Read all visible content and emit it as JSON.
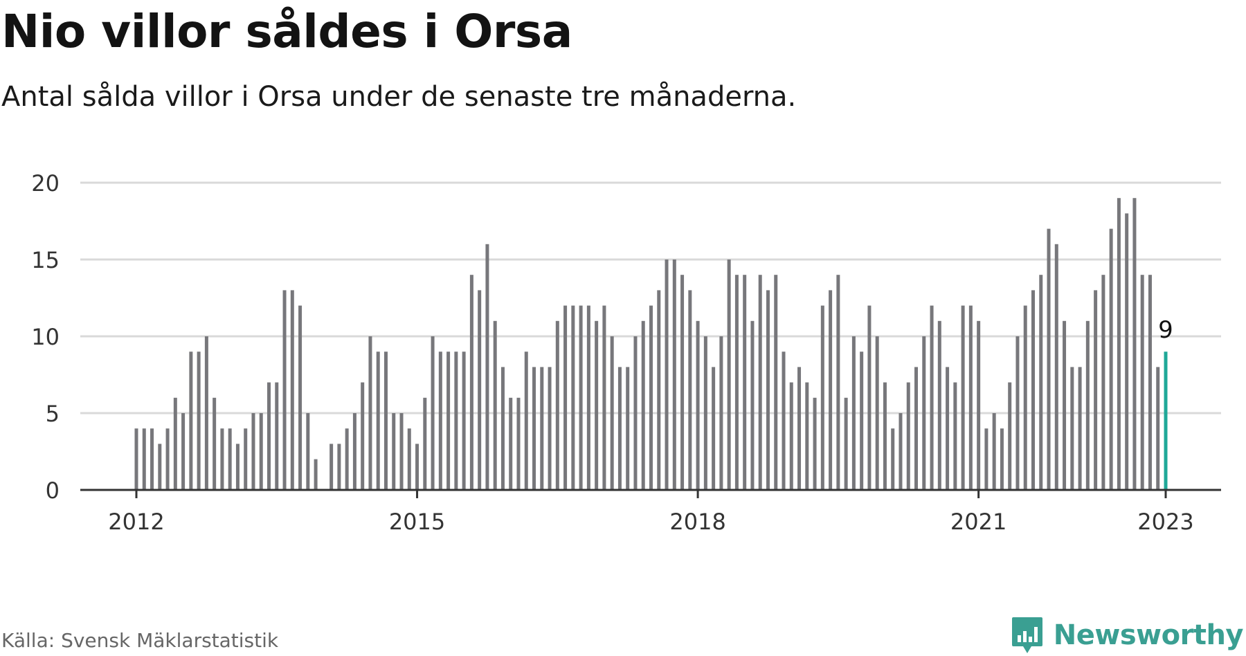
{
  "title": "Nio villor såldes i Orsa",
  "subtitle": "Antal sålda villor i Orsa under de senaste tre månaderna.",
  "source": "Källa: Svensk Mäklarstatistik",
  "brand": {
    "name": "Newsworthy",
    "icon": "newsworthy-logo-icon",
    "color": "#3a9f92"
  },
  "colors": {
    "bar": "#77777b",
    "highlight": "#1fa898",
    "grid": "#d9d9d9",
    "axis": "#333333"
  },
  "chart_data": {
    "type": "bar",
    "x_start": "2012-01",
    "x_end": "2023-01",
    "x_ticks": [
      "2012",
      "2015",
      "2018",
      "2021",
      "2023"
    ],
    "y_ticks": [
      "0",
      "5",
      "10",
      "15",
      "20"
    ],
    "ylim": [
      0,
      20
    ],
    "grid": true,
    "values": [
      4,
      4,
      4,
      3,
      4,
      6,
      5,
      9,
      9,
      10,
      6,
      4,
      4,
      3,
      4,
      5,
      5,
      7,
      7,
      13,
      13,
      12,
      5,
      2,
      null,
      3,
      3,
      4,
      5,
      7,
      10,
      9,
      9,
      5,
      5,
      4,
      3,
      6,
      10,
      9,
      9,
      9,
      9,
      14,
      13,
      16,
      11,
      8,
      6,
      6,
      9,
      8,
      8,
      8,
      11,
      12,
      12,
      12,
      12,
      11,
      12,
      10,
      8,
      8,
      10,
      11,
      12,
      13,
      15,
      15,
      14,
      13,
      11,
      10,
      8,
      10,
      15,
      14,
      14,
      11,
      14,
      13,
      14,
      9,
      7,
      8,
      7,
      6,
      12,
      13,
      14,
      6,
      10,
      9,
      12,
      10,
      7,
      4,
      5,
      7,
      8,
      10,
      12,
      11,
      8,
      7,
      12,
      12,
      11,
      4,
      5,
      4,
      7,
      10,
      12,
      13,
      14,
      17,
      16,
      11,
      8,
      8,
      11,
      13,
      14,
      17,
      19,
      18,
      19,
      14,
      14,
      8,
      9
    ],
    "highlight_last": true,
    "last_label": "9"
  }
}
